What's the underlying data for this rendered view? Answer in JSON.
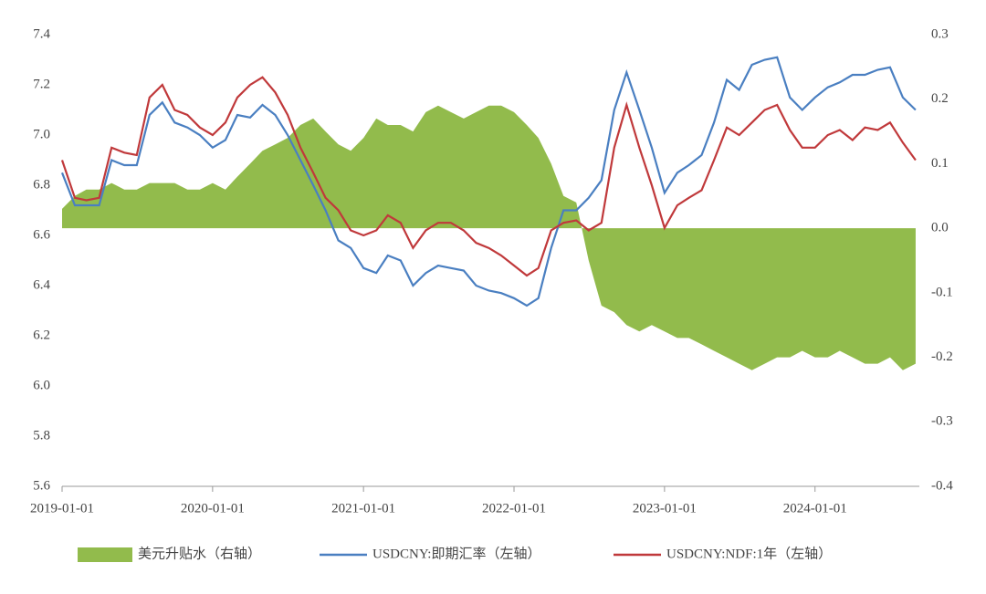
{
  "chart_data": {
    "type": "line",
    "x": [
      "2019-01-01",
      "2019-02-01",
      "2019-03-01",
      "2019-04-01",
      "2019-05-01",
      "2019-06-01",
      "2019-07-01",
      "2019-08-01",
      "2019-09-01",
      "2019-10-01",
      "2019-11-01",
      "2019-12-01",
      "2020-01-01",
      "2020-02-01",
      "2020-03-01",
      "2020-04-01",
      "2020-05-01",
      "2020-06-01",
      "2020-07-01",
      "2020-08-01",
      "2020-09-01",
      "2020-10-01",
      "2020-11-01",
      "2020-12-01",
      "2021-01-01",
      "2021-02-01",
      "2021-03-01",
      "2021-04-01",
      "2021-05-01",
      "2021-06-01",
      "2021-07-01",
      "2021-08-01",
      "2021-09-01",
      "2021-10-01",
      "2021-11-01",
      "2021-12-01",
      "2022-01-01",
      "2022-02-01",
      "2022-03-01",
      "2022-04-01",
      "2022-05-01",
      "2022-06-01",
      "2022-07-01",
      "2022-08-01",
      "2022-09-01",
      "2022-10-01",
      "2022-11-01",
      "2022-12-01",
      "2023-01-01",
      "2023-02-01",
      "2023-03-01",
      "2023-04-01",
      "2023-05-01",
      "2023-06-01",
      "2023-07-01",
      "2023-08-01",
      "2023-09-01",
      "2023-10-01",
      "2023-11-01",
      "2023-12-01",
      "2024-01-01",
      "2024-02-01",
      "2024-03-01",
      "2024-04-01",
      "2024-05-01",
      "2024-06-01",
      "2024-07-01",
      "2024-08-01",
      "2024-09-01"
    ],
    "series": [
      {
        "name": "美元升贴水（右轴）",
        "kind": "area",
        "axis": "y2",
        "color": "#92bb4c",
        "values": [
          0.03,
          0.05,
          0.06,
          0.06,
          0.07,
          0.06,
          0.06,
          0.07,
          0.07,
          0.07,
          0.06,
          0.06,
          0.07,
          0.06,
          0.08,
          0.1,
          0.12,
          0.13,
          0.14,
          0.16,
          0.17,
          0.15,
          0.13,
          0.12,
          0.14,
          0.17,
          0.16,
          0.16,
          0.15,
          0.18,
          0.19,
          0.18,
          0.17,
          0.18,
          0.19,
          0.19,
          0.18,
          0.16,
          0.14,
          0.1,
          0.05,
          0.04,
          -0.05,
          -0.12,
          -0.13,
          -0.15,
          -0.16,
          -0.15,
          -0.16,
          -0.17,
          -0.17,
          -0.18,
          -0.19,
          -0.2,
          -0.21,
          -0.22,
          -0.21,
          -0.2,
          -0.2,
          -0.19,
          -0.2,
          -0.2,
          -0.19,
          -0.2,
          -0.21,
          -0.21,
          -0.2,
          -0.22,
          -0.21
        ]
      },
      {
        "name": "USDCNY:即期汇率（左轴）",
        "kind": "line",
        "color": "#4a7fc1",
        "values": [
          6.85,
          6.72,
          6.72,
          6.72,
          6.9,
          6.88,
          6.88,
          7.08,
          7.13,
          7.05,
          7.03,
          7.0,
          6.95,
          6.98,
          7.08,
          7.07,
          7.12,
          7.08,
          7.0,
          6.9,
          6.8,
          6.7,
          6.58,
          6.55,
          6.47,
          6.45,
          6.52,
          6.5,
          6.4,
          6.45,
          6.48,
          6.47,
          6.46,
          6.4,
          6.38,
          6.37,
          6.35,
          6.32,
          6.35,
          6.55,
          6.7,
          6.7,
          6.75,
          6.82,
          7.1,
          7.25,
          7.1,
          6.95,
          6.77,
          6.85,
          6.88,
          6.92,
          7.05,
          7.22,
          7.18,
          7.28,
          7.3,
          7.31,
          7.15,
          7.1,
          7.15,
          7.19,
          7.21,
          7.24,
          7.24,
          7.26,
          7.27,
          7.15,
          7.1
        ]
      },
      {
        "name": "USDCNY:NDF:1年（左轴）",
        "kind": "line",
        "color": "#c0393b",
        "values": [
          6.9,
          6.75,
          6.74,
          6.75,
          6.95,
          6.93,
          6.92,
          7.15,
          7.2,
          7.1,
          7.08,
          7.03,
          7.0,
          7.05,
          7.15,
          7.2,
          7.23,
          7.17,
          7.08,
          6.95,
          6.85,
          6.75,
          6.7,
          6.62,
          6.6,
          6.62,
          6.68,
          6.65,
          6.55,
          6.62,
          6.65,
          6.65,
          6.62,
          6.57,
          6.55,
          6.52,
          6.48,
          6.44,
          6.47,
          6.62,
          6.65,
          6.66,
          6.62,
          6.65,
          6.95,
          7.12,
          6.95,
          6.8,
          6.63,
          6.72,
          6.75,
          6.78,
          6.9,
          7.03,
          7.0,
          7.05,
          7.1,
          7.12,
          7.02,
          6.95,
          6.95,
          7.0,
          7.02,
          6.98,
          7.03,
          7.02,
          7.05,
          6.97,
          6.9
        ]
      }
    ],
    "xlim": [
      "2019-01-01",
      "2024-09-10"
    ],
    "xticks": [
      "2019-01-01",
      "2020-01-01",
      "2021-01-01",
      "2022-01-01",
      "2023-01-01",
      "2024-01-01"
    ],
    "ylim": [
      5.6,
      7.4
    ],
    "yticks": [
      5.6,
      5.8,
      {
        "value": 6.0,
        "label": "6.0"
      },
      6.2,
      6.4,
      6.6,
      6.8,
      {
        "value": 7.0,
        "label": "7.0"
      },
      7.2,
      7.4
    ],
    "y2lim": [
      -0.4,
      0.3
    ],
    "y2ticks": [
      -0.4,
      -0.3,
      -0.2,
      -0.1,
      {
        "value": 0.0,
        "label": "0.0"
      },
      0.1,
      0.2,
      0.3
    ]
  }
}
